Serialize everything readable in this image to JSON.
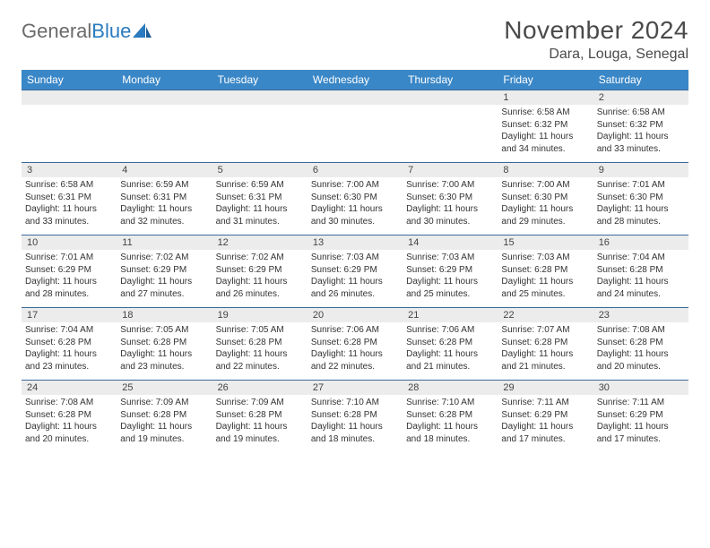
{
  "brand": {
    "word1": "General",
    "word2": "Blue"
  },
  "title": "November 2024",
  "location": "Dara, Louga, Senegal",
  "colors": {
    "header_bg": "#3a87c7",
    "header_text": "#ffffff",
    "daynum_bg": "#ececec",
    "border": "#3a6a9a",
    "logo_gray": "#6a6a6a",
    "logo_blue": "#2a7bbf",
    "text": "#333333",
    "bg": "#ffffff"
  },
  "fonts": {
    "title_size": 28,
    "location_size": 16,
    "header_size": 12,
    "cell_size": 10
  },
  "day_names": [
    "Sunday",
    "Monday",
    "Tuesday",
    "Wednesday",
    "Thursday",
    "Friday",
    "Saturday"
  ],
  "weeks": [
    [
      null,
      null,
      null,
      null,
      null,
      {
        "n": "1",
        "sr": "Sunrise: 6:58 AM",
        "ss": "Sunset: 6:32 PM",
        "dl": "Daylight: 11 hours and 34 minutes."
      },
      {
        "n": "2",
        "sr": "Sunrise: 6:58 AM",
        "ss": "Sunset: 6:32 PM",
        "dl": "Daylight: 11 hours and 33 minutes."
      }
    ],
    [
      {
        "n": "3",
        "sr": "Sunrise: 6:58 AM",
        "ss": "Sunset: 6:31 PM",
        "dl": "Daylight: 11 hours and 33 minutes."
      },
      {
        "n": "4",
        "sr": "Sunrise: 6:59 AM",
        "ss": "Sunset: 6:31 PM",
        "dl": "Daylight: 11 hours and 32 minutes."
      },
      {
        "n": "5",
        "sr": "Sunrise: 6:59 AM",
        "ss": "Sunset: 6:31 PM",
        "dl": "Daylight: 11 hours and 31 minutes."
      },
      {
        "n": "6",
        "sr": "Sunrise: 7:00 AM",
        "ss": "Sunset: 6:30 PM",
        "dl": "Daylight: 11 hours and 30 minutes."
      },
      {
        "n": "7",
        "sr": "Sunrise: 7:00 AM",
        "ss": "Sunset: 6:30 PM",
        "dl": "Daylight: 11 hours and 30 minutes."
      },
      {
        "n": "8",
        "sr": "Sunrise: 7:00 AM",
        "ss": "Sunset: 6:30 PM",
        "dl": "Daylight: 11 hours and 29 minutes."
      },
      {
        "n": "9",
        "sr": "Sunrise: 7:01 AM",
        "ss": "Sunset: 6:30 PM",
        "dl": "Daylight: 11 hours and 28 minutes."
      }
    ],
    [
      {
        "n": "10",
        "sr": "Sunrise: 7:01 AM",
        "ss": "Sunset: 6:29 PM",
        "dl": "Daylight: 11 hours and 28 minutes."
      },
      {
        "n": "11",
        "sr": "Sunrise: 7:02 AM",
        "ss": "Sunset: 6:29 PM",
        "dl": "Daylight: 11 hours and 27 minutes."
      },
      {
        "n": "12",
        "sr": "Sunrise: 7:02 AM",
        "ss": "Sunset: 6:29 PM",
        "dl": "Daylight: 11 hours and 26 minutes."
      },
      {
        "n": "13",
        "sr": "Sunrise: 7:03 AM",
        "ss": "Sunset: 6:29 PM",
        "dl": "Daylight: 11 hours and 26 minutes."
      },
      {
        "n": "14",
        "sr": "Sunrise: 7:03 AM",
        "ss": "Sunset: 6:29 PM",
        "dl": "Daylight: 11 hours and 25 minutes."
      },
      {
        "n": "15",
        "sr": "Sunrise: 7:03 AM",
        "ss": "Sunset: 6:28 PM",
        "dl": "Daylight: 11 hours and 25 minutes."
      },
      {
        "n": "16",
        "sr": "Sunrise: 7:04 AM",
        "ss": "Sunset: 6:28 PM",
        "dl": "Daylight: 11 hours and 24 minutes."
      }
    ],
    [
      {
        "n": "17",
        "sr": "Sunrise: 7:04 AM",
        "ss": "Sunset: 6:28 PM",
        "dl": "Daylight: 11 hours and 23 minutes."
      },
      {
        "n": "18",
        "sr": "Sunrise: 7:05 AM",
        "ss": "Sunset: 6:28 PM",
        "dl": "Daylight: 11 hours and 23 minutes."
      },
      {
        "n": "19",
        "sr": "Sunrise: 7:05 AM",
        "ss": "Sunset: 6:28 PM",
        "dl": "Daylight: 11 hours and 22 minutes."
      },
      {
        "n": "20",
        "sr": "Sunrise: 7:06 AM",
        "ss": "Sunset: 6:28 PM",
        "dl": "Daylight: 11 hours and 22 minutes."
      },
      {
        "n": "21",
        "sr": "Sunrise: 7:06 AM",
        "ss": "Sunset: 6:28 PM",
        "dl": "Daylight: 11 hours and 21 minutes."
      },
      {
        "n": "22",
        "sr": "Sunrise: 7:07 AM",
        "ss": "Sunset: 6:28 PM",
        "dl": "Daylight: 11 hours and 21 minutes."
      },
      {
        "n": "23",
        "sr": "Sunrise: 7:08 AM",
        "ss": "Sunset: 6:28 PM",
        "dl": "Daylight: 11 hours and 20 minutes."
      }
    ],
    [
      {
        "n": "24",
        "sr": "Sunrise: 7:08 AM",
        "ss": "Sunset: 6:28 PM",
        "dl": "Daylight: 11 hours and 20 minutes."
      },
      {
        "n": "25",
        "sr": "Sunrise: 7:09 AM",
        "ss": "Sunset: 6:28 PM",
        "dl": "Daylight: 11 hours and 19 minutes."
      },
      {
        "n": "26",
        "sr": "Sunrise: 7:09 AM",
        "ss": "Sunset: 6:28 PM",
        "dl": "Daylight: 11 hours and 19 minutes."
      },
      {
        "n": "27",
        "sr": "Sunrise: 7:10 AM",
        "ss": "Sunset: 6:28 PM",
        "dl": "Daylight: 11 hours and 18 minutes."
      },
      {
        "n": "28",
        "sr": "Sunrise: 7:10 AM",
        "ss": "Sunset: 6:28 PM",
        "dl": "Daylight: 11 hours and 18 minutes."
      },
      {
        "n": "29",
        "sr": "Sunrise: 7:11 AM",
        "ss": "Sunset: 6:29 PM",
        "dl": "Daylight: 11 hours and 17 minutes."
      },
      {
        "n": "30",
        "sr": "Sunrise: 7:11 AM",
        "ss": "Sunset: 6:29 PM",
        "dl": "Daylight: 11 hours and 17 minutes."
      }
    ]
  ]
}
